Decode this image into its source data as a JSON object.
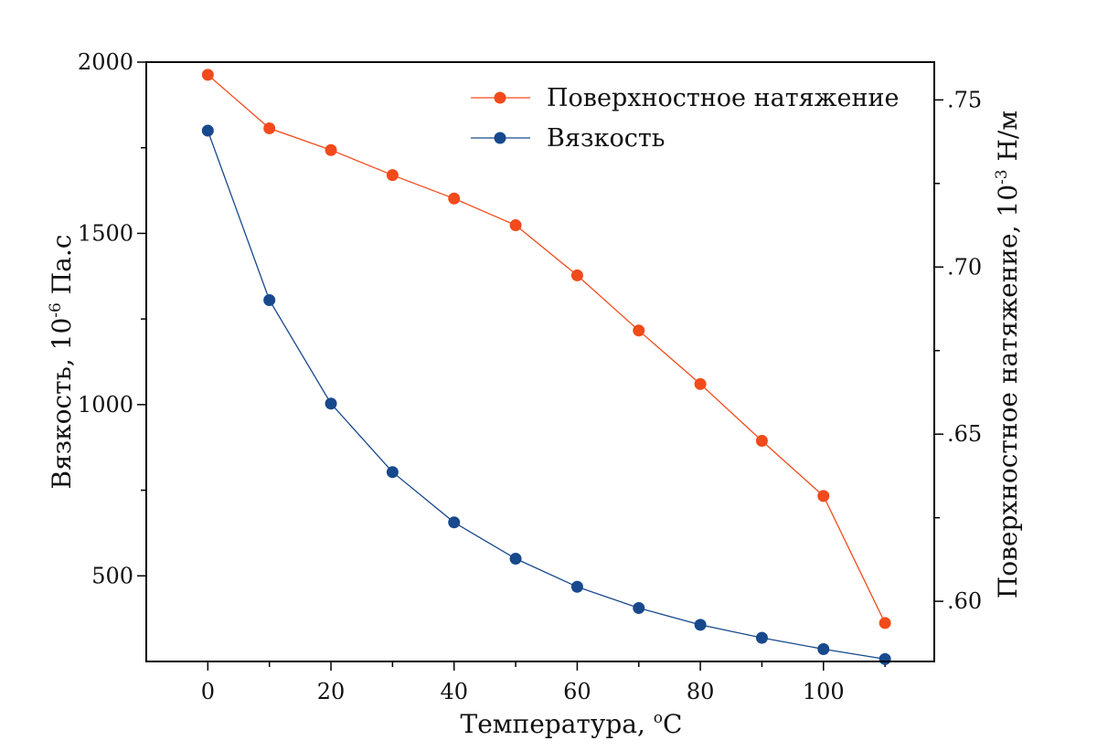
{
  "chart_data": {
    "type": "line",
    "x": [
      0,
      10,
      20,
      30,
      40,
      50,
      60,
      70,
      80,
      90,
      100,
      110
    ],
    "xlabel": "Температура, ",
    "xlabel_sup": "o",
    "xlabel_suffix": "С",
    "xlim": [
      -10,
      118
    ],
    "xticks": [
      "0",
      "20",
      "40",
      "60",
      "80",
      "100"
    ],
    "ylabel_left": "Вязкость, 10",
    "ylabel_left_sup": "-6",
    "ylabel_left_suffix": " Па.с",
    "ylim_left": [
      250,
      2000
    ],
    "yticks_left": [
      "500",
      "1000",
      "1500",
      "2000"
    ],
    "ylabel_right": "Поверхностное натяжение, 10",
    "ylabel_right_sup": "-3",
    "ylabel_right_suffix": " Н/м",
    "ylim_right": [
      0.582,
      0.7613
    ],
    "yticks_right": [
      ".60",
      ".65",
      ".70",
      ".75"
    ],
    "series": [
      {
        "name": "Поверхностное натяжение",
        "axis": "right",
        "color": "#f24a1b",
        "values": [
          0.7575,
          0.7415,
          0.735,
          0.7275,
          0.7205,
          0.7125,
          0.6975,
          0.681,
          0.665,
          0.648,
          0.6315,
          0.5935
        ]
      },
      {
        "name": "Вязкость",
        "axis": "left",
        "color": "#17498c",
        "values": [
          1800,
          1305,
          1003,
          803,
          656,
          550,
          468,
          406,
          357,
          319,
          286,
          257
        ]
      }
    ],
    "legend_position": "top-right"
  }
}
